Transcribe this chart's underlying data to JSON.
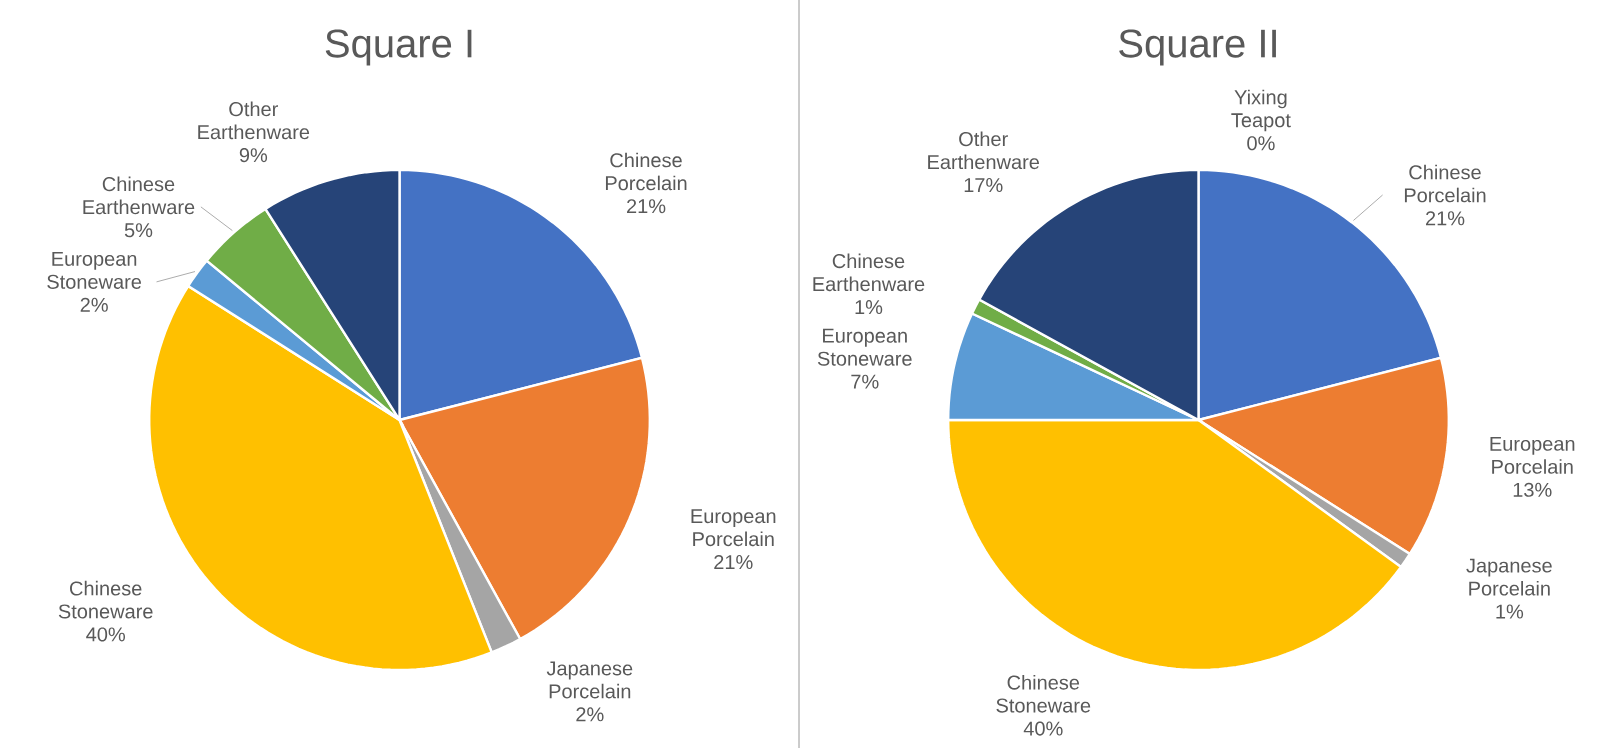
{
  "chart_data": [
    {
      "type": "pie",
      "title": "Square I",
      "categories": [
        "Chinese Porcelain",
        "European Porcelain",
        "Japanese Porcelain",
        "Chinese Stoneware",
        "European Stoneware",
        "Chinese Earthenware",
        "Other Earthenware"
      ],
      "values": [
        21,
        21,
        2,
        40,
        2,
        5,
        9
      ],
      "value_labels": [
        "21%",
        "21%",
        "2%",
        "40%",
        "2%",
        "5%",
        "9%"
      ],
      "colors": [
        "#4472c4",
        "#ed7d31",
        "#a5a5a5",
        "#ffc000",
        "#5b9bd5",
        "#70ad47",
        "#264478"
      ]
    },
    {
      "type": "pie",
      "title": "Square II",
      "categories": [
        "Chinese Porcelain",
        "European Porcelain",
        "Japanese Porcelain",
        "Chinese Stoneware",
        "European Stoneware",
        "Chinese Earthenware",
        "Other Earthenware",
        "Yixing Teapot"
      ],
      "values": [
        21,
        13,
        1,
        40,
        7,
        1,
        17,
        0
      ],
      "value_labels": [
        "21%",
        "13%",
        "1%",
        "40%",
        "7%",
        "1%",
        "17%",
        "0%"
      ],
      "colors": [
        "#4472c4",
        "#ed7d31",
        "#a5a5a5",
        "#ffc000",
        "#5b9bd5",
        "#70ad47",
        "#264478",
        "#9e480e"
      ]
    }
  ]
}
